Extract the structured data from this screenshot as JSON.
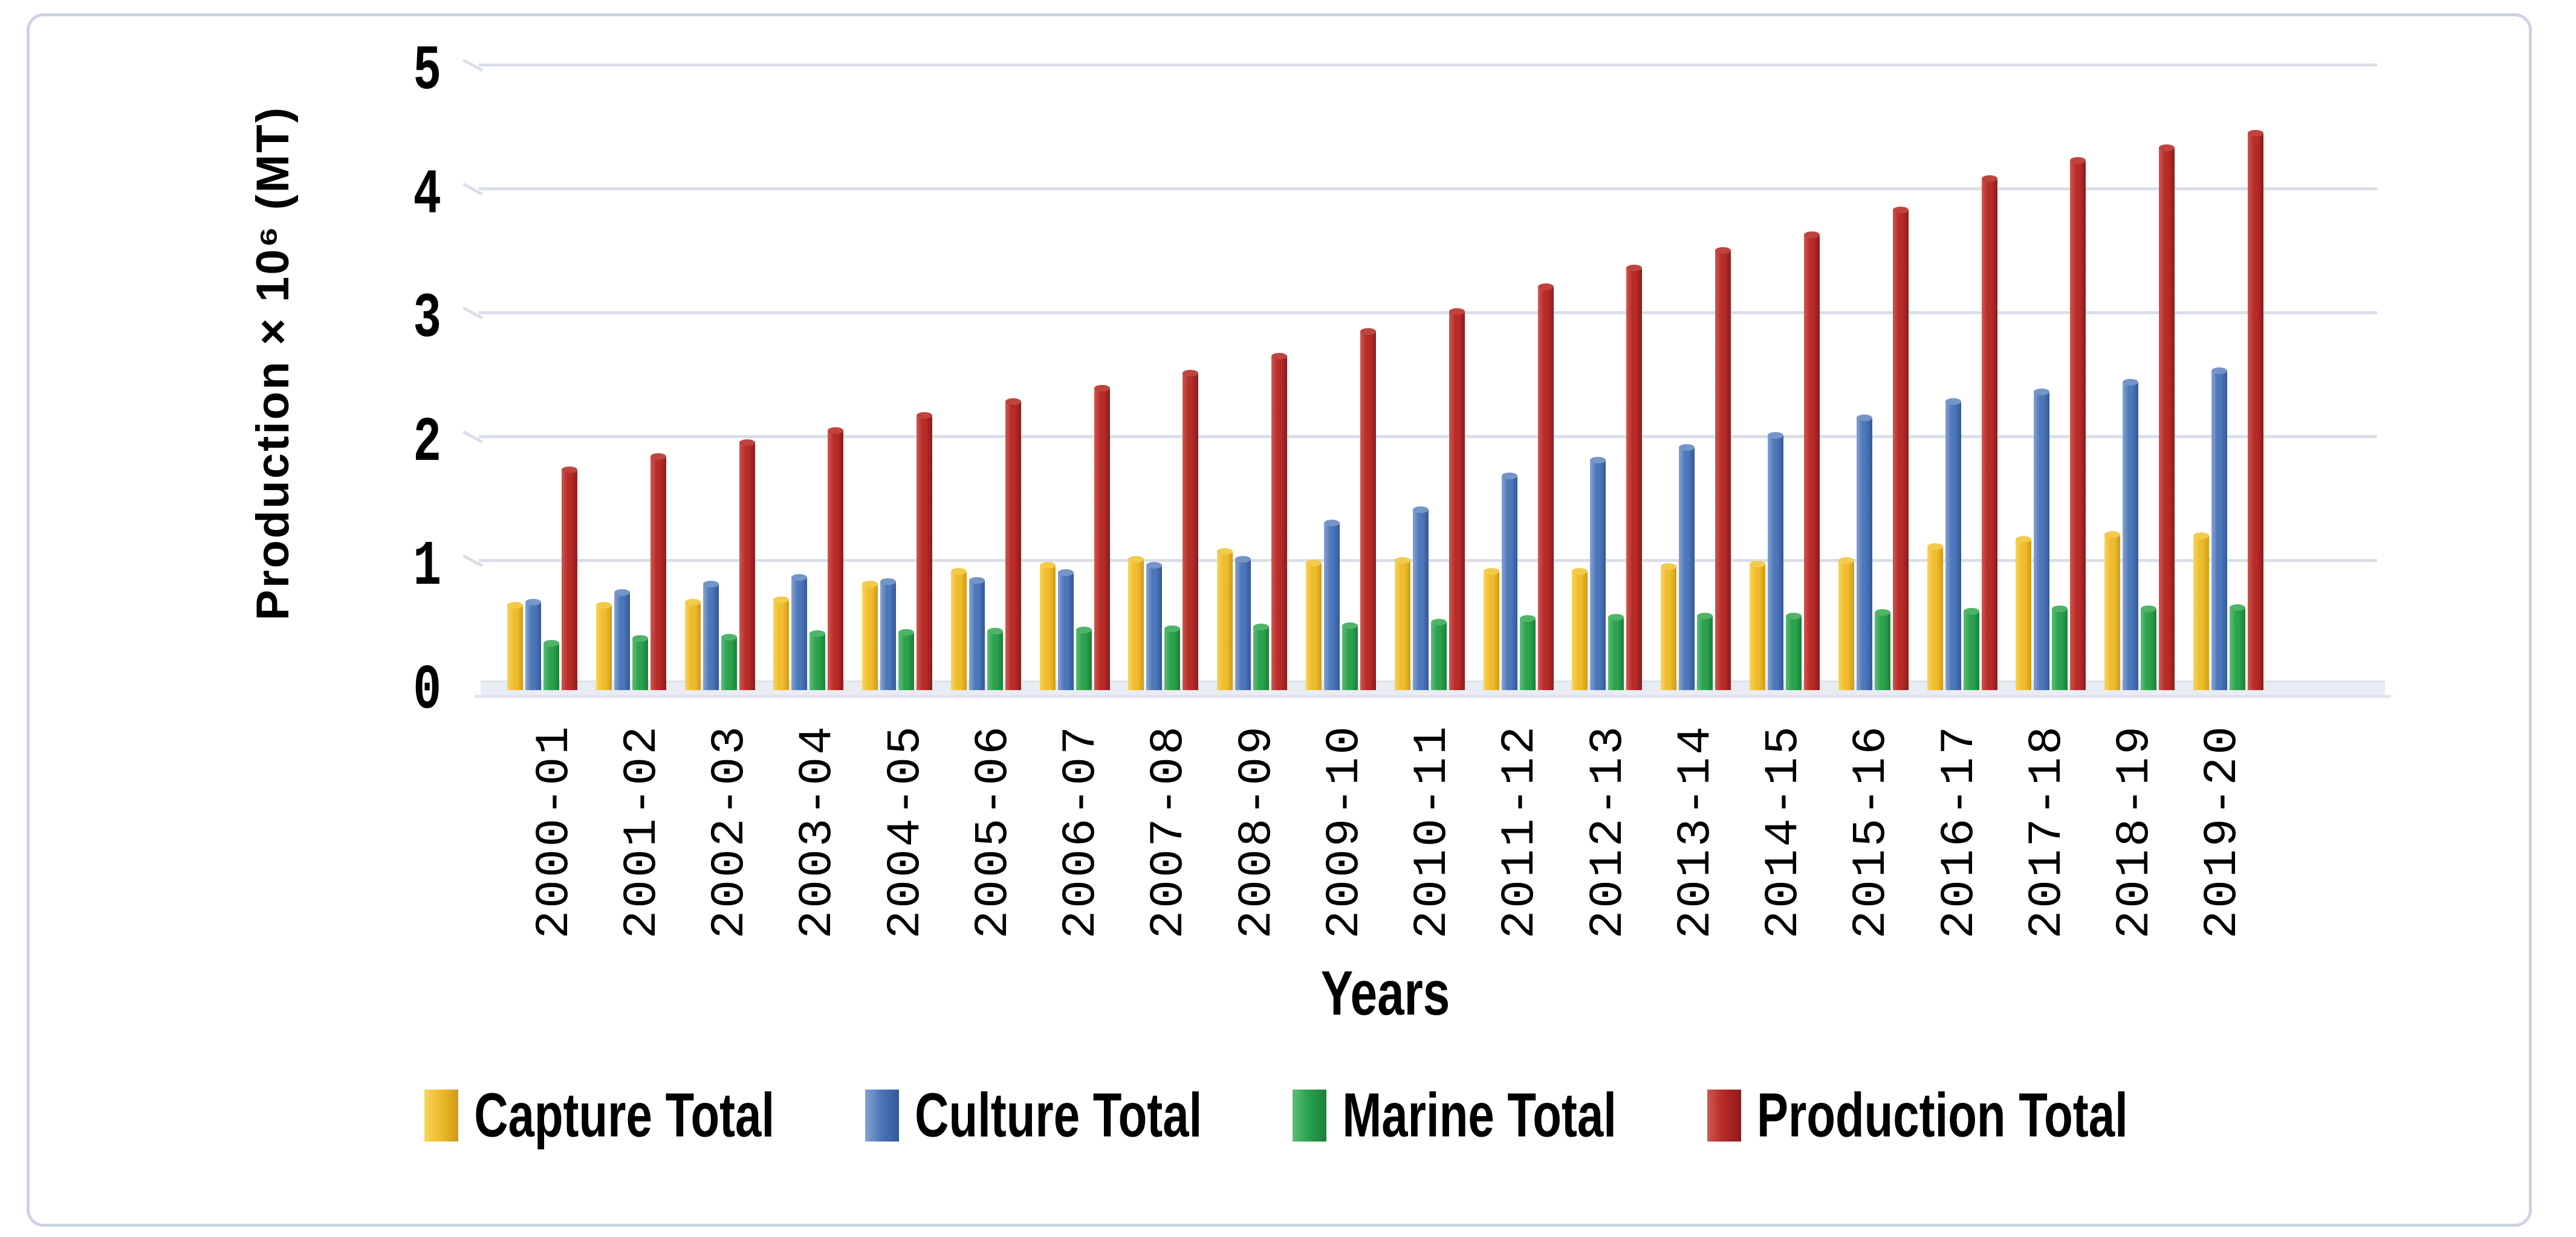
{
  "chart_data": {
    "type": "bar",
    "subtype": "3d-cylinder-clustered",
    "title": "",
    "xlabel": "Years",
    "ylabel": "Production × 10⁶ (MT)",
    "ylim": [
      0,
      5
    ],
    "yticks": [
      0,
      1,
      2,
      3,
      4,
      5
    ],
    "grid": true,
    "legend_position": "bottom",
    "categories": [
      "2000-01",
      "2001-02",
      "2002-03",
      "2003-04",
      "2004-05",
      "2005-06",
      "2006-07",
      "2007-08",
      "2008-09",
      "2009-10",
      "2010-11",
      "2011-12",
      "2012-13",
      "2013-14",
      "2014-15",
      "2015-16",
      "2016-17",
      "2017-18",
      "2018-19",
      "2019-20"
    ],
    "series": [
      {
        "name": "Capture Total",
        "color": "#EFBC2D",
        "color_light": "#F7D55C",
        "color_dark": "#D19B15",
        "color_cap": "#F3CB4B",
        "values": [
          0.69,
          0.69,
          0.71,
          0.73,
          0.86,
          0.96,
          1.01,
          1.06,
          1.12,
          1.03,
          1.05,
          0.96,
          0.96,
          1.0,
          1.02,
          1.05,
          1.16,
          1.22,
          1.26,
          1.25
        ]
      },
      {
        "name": "Culture Total",
        "color": "#4C77BA",
        "color_light": "#88A3D1",
        "color_dark": "#33589B",
        "color_cap": "#7495C8",
        "values": [
          0.71,
          0.79,
          0.86,
          0.91,
          0.88,
          0.89,
          0.95,
          1.01,
          1.06,
          1.35,
          1.46,
          1.73,
          1.86,
          1.96,
          2.06,
          2.2,
          2.33,
          2.41,
          2.49,
          2.58
        ]
      },
      {
        "name": "Marine Total",
        "color": "#2BA24D",
        "color_light": "#5FBD79",
        "color_dark": "#18813A",
        "color_cap": "#4FB468",
        "values": [
          0.38,
          0.42,
          0.43,
          0.46,
          0.47,
          0.48,
          0.49,
          0.5,
          0.51,
          0.52,
          0.55,
          0.58,
          0.59,
          0.6,
          0.6,
          0.63,
          0.64,
          0.66,
          0.66,
          0.67
        ]
      },
      {
        "name": "Production Total",
        "color": "#B72B28",
        "color_light": "#CE5850",
        "color_dark": "#8E1B1C",
        "color_cap": "#C0443E",
        "values": [
          1.78,
          1.89,
          2.0,
          2.1,
          2.22,
          2.33,
          2.44,
          2.56,
          2.7,
          2.9,
          3.06,
          3.26,
          3.41,
          3.55,
          3.68,
          3.88,
          4.13,
          4.28,
          4.38,
          4.5
        ]
      }
    ],
    "palette": {
      "gridline": "#D9DEE8",
      "floor": "#E9ECF2",
      "frame_border": "#CCD3E1",
      "text": "#000000",
      "background": "#FFFFFF"
    }
  }
}
